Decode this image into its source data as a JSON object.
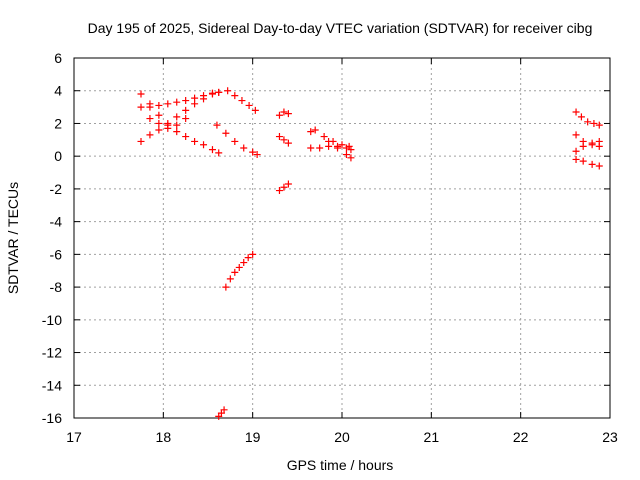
{
  "chart_data": {
    "type": "scatter",
    "title": "Day 195 of 2025, Sidereal Day-to-day VTEC variation (SDTVAR) for receiver cibg",
    "xlabel": "GPS time / hours",
    "ylabel": "SDTVAR / TECUs",
    "xlim": [
      17,
      23
    ],
    "ylim": [
      -16,
      6
    ],
    "xticks": [
      "17",
      "18",
      "19",
      "20",
      "21",
      "22",
      "23"
    ],
    "yticks": [
      "6",
      "4",
      "2",
      "0",
      "-2",
      "-4",
      "-6",
      "-8",
      "-10",
      "-12",
      "-14",
      "-16"
    ],
    "grid": true,
    "marker": "+",
    "color": "#ff0000",
    "tracks": [
      {
        "x": [
          17.75,
          17.85,
          17.95,
          18.05,
          18.15,
          18.25,
          18.35,
          18.45,
          18.55,
          18.62
        ],
        "y": [
          3.8,
          3.2,
          2.5,
          1.9,
          1.5,
          1.2,
          0.9,
          0.7,
          0.4,
          0.2
        ]
      },
      {
        "x": [
          17.75,
          17.85,
          17.95,
          18.05,
          18.15,
          18.25,
          18.35,
          18.45,
          18.55,
          18.62
        ],
        "y": [
          3.0,
          3.0,
          3.1,
          3.2,
          3.3,
          3.4,
          3.55,
          3.7,
          3.85,
          3.9
        ]
      },
      {
        "x": [
          17.75,
          17.85,
          17.95,
          18.05,
          18.15,
          18.25,
          18.35,
          18.45,
          18.55,
          18.62
        ],
        "y": [
          0.9,
          1.3,
          1.6,
          2.0,
          2.4,
          2.8,
          3.2,
          3.5,
          3.8,
          3.9
        ]
      },
      {
        "x": [
          17.85,
          17.95,
          18.05,
          18.15,
          18.25
        ],
        "y": [
          2.3,
          2.0,
          1.7,
          1.9,
          2.3
        ]
      },
      {
        "x": [
          18.6,
          18.7,
          18.8,
          18.9,
          19.0,
          19.05
        ],
        "y": [
          1.9,
          1.4,
          0.9,
          0.5,
          0.25,
          0.1
        ]
      },
      {
        "x": [
          18.72,
          18.8,
          18.88,
          18.96,
          19.03
        ],
        "y": [
          4.0,
          3.7,
          3.4,
          3.1,
          2.8
        ]
      },
      {
        "x": [
          18.7,
          18.75,
          18.8,
          18.85,
          18.9,
          18.95,
          19.0
        ],
        "y": [
          -8.0,
          -7.5,
          -7.1,
          -6.8,
          -6.5,
          -6.2,
          -6.0
        ]
      },
      {
        "x": [
          18.62,
          18.65,
          18.68
        ],
        "y": [
          -15.9,
          -15.7,
          -15.5
        ]
      },
      {
        "x": [
          19.3,
          19.35,
          19.4
        ],
        "y": [
          2.5,
          2.7,
          2.6
        ]
      },
      {
        "x": [
          19.3,
          19.35,
          19.4
        ],
        "y": [
          1.2,
          1.0,
          0.8
        ]
      },
      {
        "x": [
          19.3,
          19.35,
          19.4
        ],
        "y": [
          -2.1,
          -1.9,
          -1.7
        ]
      },
      {
        "x": [
          19.65,
          19.7,
          19.8,
          19.9,
          20.0,
          20.08
        ],
        "y": [
          1.5,
          1.6,
          1.2,
          0.9,
          0.7,
          0.6
        ]
      },
      {
        "x": [
          19.65,
          19.75,
          19.85,
          19.95,
          20.05,
          20.1
        ],
        "y": [
          0.5,
          0.5,
          0.6,
          0.6,
          0.5,
          0.4
        ]
      },
      {
        "x": [
          19.85,
          19.95,
          20.05,
          20.1
        ],
        "y": [
          0.9,
          0.5,
          0.1,
          -0.1
        ]
      },
      {
        "x": [
          22.62,
          22.68,
          22.75,
          22.82,
          22.88
        ],
        "y": [
          2.7,
          2.4,
          2.1,
          2.0,
          1.9
        ]
      },
      {
        "x": [
          22.62,
          22.7,
          22.8,
          22.88
        ],
        "y": [
          1.3,
          0.9,
          0.7,
          0.6
        ]
      },
      {
        "x": [
          22.62,
          22.7,
          22.8,
          22.88
        ],
        "y": [
          0.3,
          0.6,
          0.8,
          0.9
        ]
      },
      {
        "x": [
          22.62,
          22.7,
          22.8,
          22.88
        ],
        "y": [
          -0.2,
          -0.3,
          -0.5,
          -0.6
        ]
      }
    ]
  }
}
